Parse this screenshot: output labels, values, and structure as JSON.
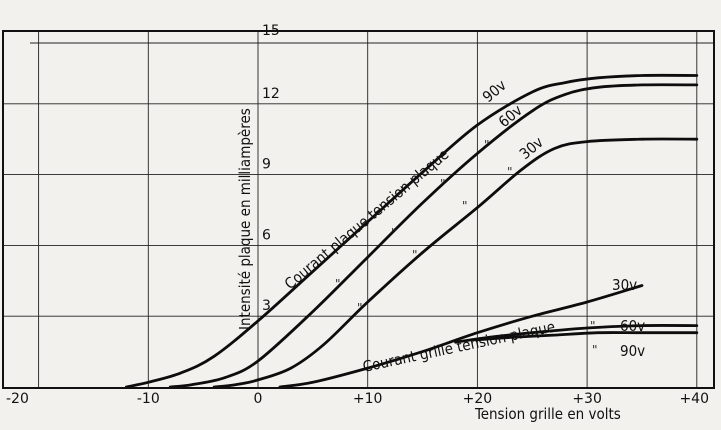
{
  "chart_data": {
    "type": "line",
    "xlabel": "Tension grille en volts",
    "ylabel": "Intensité plaque en milliampères",
    "xlim": [
      -22,
      40
    ],
    "ylim": [
      0,
      15
    ],
    "x_ticks": [
      "-20",
      "-10",
      "0",
      "+10",
      "+20",
      "+30",
      "+40"
    ],
    "y_ticks": [
      "3",
      "6",
      "9",
      "12",
      "15"
    ],
    "grid": true,
    "series": [
      {
        "group": "plaque",
        "label": "90v",
        "x": [
          -12,
          -10,
          -7,
          -4,
          0,
          5,
          10,
          15,
          20,
          25,
          28,
          31,
          35,
          40
        ],
        "y": [
          0,
          0.2,
          0.6,
          1.3,
          2.8,
          4.9,
          7.0,
          9.1,
          11.1,
          12.5,
          12.9,
          13.1,
          13.2,
          13.2
        ]
      },
      {
        "group": "plaque",
        "label": "60v",
        "x": [
          -8,
          -6,
          -3,
          0,
          5,
          10,
          15,
          20,
          25,
          28,
          31,
          35,
          40
        ],
        "y": [
          0,
          0.1,
          0.4,
          1.1,
          3.2,
          5.5,
          7.8,
          9.9,
          11.7,
          12.4,
          12.7,
          12.8,
          12.8
        ]
      },
      {
        "group": "plaque",
        "label": "30v",
        "x": [
          -4,
          -2,
          0,
          3,
          6,
          10,
          15,
          20,
          24,
          27,
          30,
          35,
          40
        ],
        "y": [
          0,
          0.1,
          0.3,
          0.8,
          1.8,
          3.6,
          5.7,
          7.6,
          9.2,
          10.1,
          10.4,
          10.5,
          10.5
        ]
      },
      {
        "group": "grille",
        "label": "30v",
        "x": [
          2,
          5,
          10,
          15,
          20,
          25,
          30,
          35
        ],
        "y": [
          0,
          0.2,
          0.8,
          1.5,
          2.3,
          3.0,
          3.6,
          4.3
        ]
      },
      {
        "group": "grille",
        "label": "60v",
        "x": [
          18,
          21,
          25,
          30,
          35,
          40
        ],
        "y": [
          1.9,
          2.1,
          2.3,
          2.5,
          2.6,
          2.6
        ]
      },
      {
        "group": "grille",
        "label": "90v",
        "x": [
          20,
          23,
          27,
          31,
          35,
          40
        ],
        "y": [
          2.0,
          2.1,
          2.2,
          2.3,
          2.3,
          2.3
        ]
      }
    ],
    "annotations": {
      "plaque_title": "Courant plaque  tension plaque",
      "plaque_90": "90v",
      "plaque_60": "60v",
      "plaque_30": "30v",
      "grille_title": "Courant grille  tension plaque",
      "grille_30": "30v",
      "grille_60": "60v",
      "grille_90": "90v",
      "ditto": "\""
    }
  }
}
